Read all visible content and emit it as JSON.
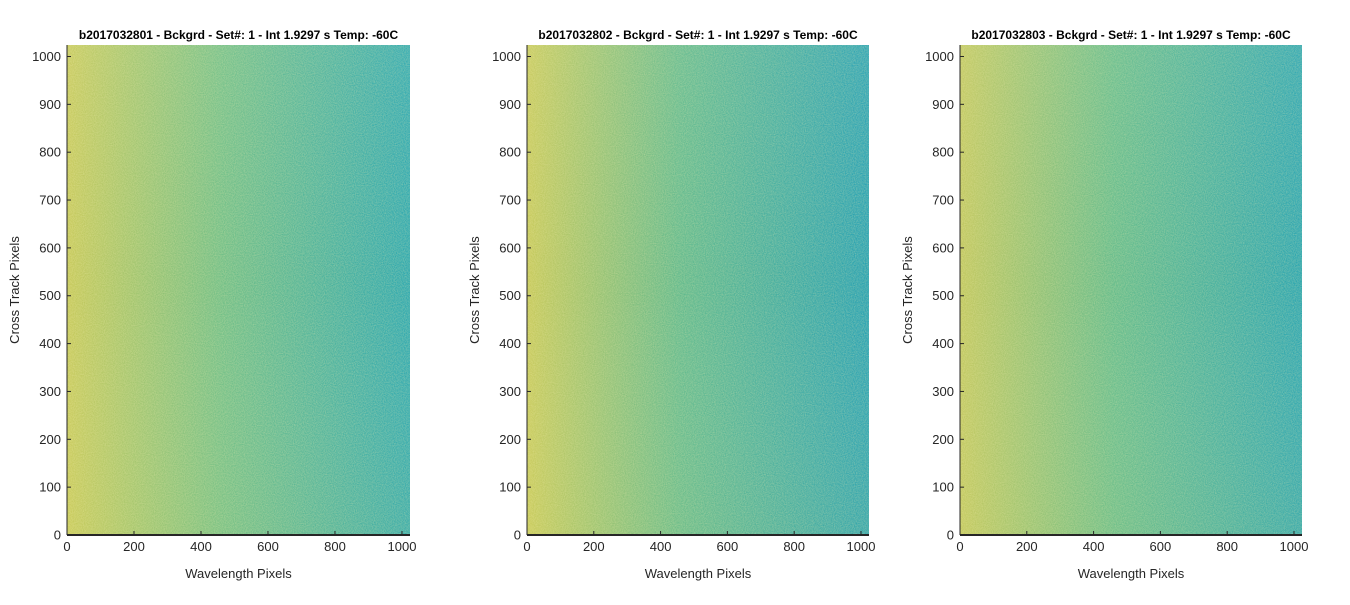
{
  "chart_data": [
    {
      "type": "heatmap",
      "title": "b2017032801 - Bckgrd - Set#: 1 - Int 1.9297 s Temp: -60C",
      "xlabel": "Wavelength Pixels",
      "ylabel": "Cross Track Pixels",
      "xlim": [
        0,
        1024
      ],
      "ylim": [
        0,
        1024
      ],
      "xticks": [
        0,
        200,
        400,
        600,
        800,
        1000
      ],
      "yticks": [
        0,
        100,
        200,
        300,
        400,
        500,
        600,
        700,
        800,
        900,
        1000
      ],
      "colors": {
        "high": "#c6c95a",
        "mid": "#6fbe86",
        "low": "#2aa7b0"
      }
    },
    {
      "type": "heatmap",
      "title": "b2017032802 - Bckgrd - Set#: 1 - Int 1.9297 s Temp: -60C",
      "xlabel": "Wavelength Pixels",
      "ylabel": "Cross Track Pixels",
      "xlim": [
        0,
        1024
      ],
      "ylim": [
        0,
        1024
      ],
      "xticks": [
        0,
        200,
        400,
        600,
        800,
        1000
      ],
      "yticks": [
        0,
        100,
        200,
        300,
        400,
        500,
        600,
        700,
        800,
        900,
        1000
      ],
      "colors": {
        "high": "#c6c95a",
        "mid": "#5fb98d",
        "low": "#23a0b3"
      }
    },
    {
      "type": "heatmap",
      "title": "b2017032803 - Bckgrd - Set#: 1 - Int 1.9297 s Temp: -60C",
      "xlabel": "Wavelength Pixels",
      "ylabel": "Cross Track Pixels",
      "xlim": [
        0,
        1024
      ],
      "ylim": [
        0,
        1024
      ],
      "xticks": [
        0,
        200,
        400,
        600,
        800,
        1000
      ],
      "yticks": [
        0,
        100,
        200,
        300,
        400,
        500,
        600,
        700,
        800,
        900,
        1000
      ],
      "colors": {
        "high": "#c0c75e",
        "mid": "#62bb8b",
        "low": "#27a4b1"
      }
    }
  ]
}
